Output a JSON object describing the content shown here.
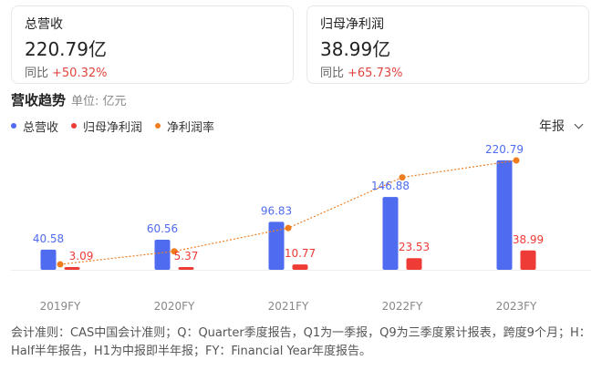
{
  "cards": [
    {
      "label": "总营收",
      "value": "220.79亿",
      "change_label": "同比",
      "change_value": "+50.32%"
    },
    {
      "label": "归母净利润",
      "value": "38.99亿",
      "change_label": "同比",
      "change_value": "+65.73%"
    }
  ],
  "section": {
    "title": "营收趋势",
    "unit": "单位: 亿元"
  },
  "period_selector": {
    "label": "年报"
  },
  "colors": {
    "revenue": "#4f6bef",
    "profit": "#ef3b36",
    "margin": "#ef7d1f"
  },
  "chart_data": {
    "type": "bar",
    "categories": [
      "2019FY",
      "2020FY",
      "2021FY",
      "2022FY",
      "2023FY"
    ],
    "series": [
      {
        "name": "总营收",
        "values": [
          40.58,
          60.56,
          96.83,
          146.88,
          220.79
        ],
        "labels": [
          "40.58",
          "60.56",
          "96.83",
          "146.88",
          "220.79"
        ]
      },
      {
        "name": "归母净利润",
        "values": [
          3.09,
          5.37,
          10.77,
          23.53,
          38.99
        ],
        "labels": [
          "3.09",
          "5.37",
          "10.77",
          "23.53",
          "38.99"
        ]
      }
    ],
    "line_series": {
      "name": "净利润率",
      "values": [
        7.61,
        8.87,
        11.12,
        16.02,
        17.66
      ]
    },
    "legend_position": "top-left"
  },
  "footnote": "会计准则：CAS中国会计准则；Q：Quarter季度报告，Q1为一季报，Q9为三季度累计报表，跨度9个月；H：Half半年报告，H1为中报即半年报；FY：Financial Year年度报告。"
}
